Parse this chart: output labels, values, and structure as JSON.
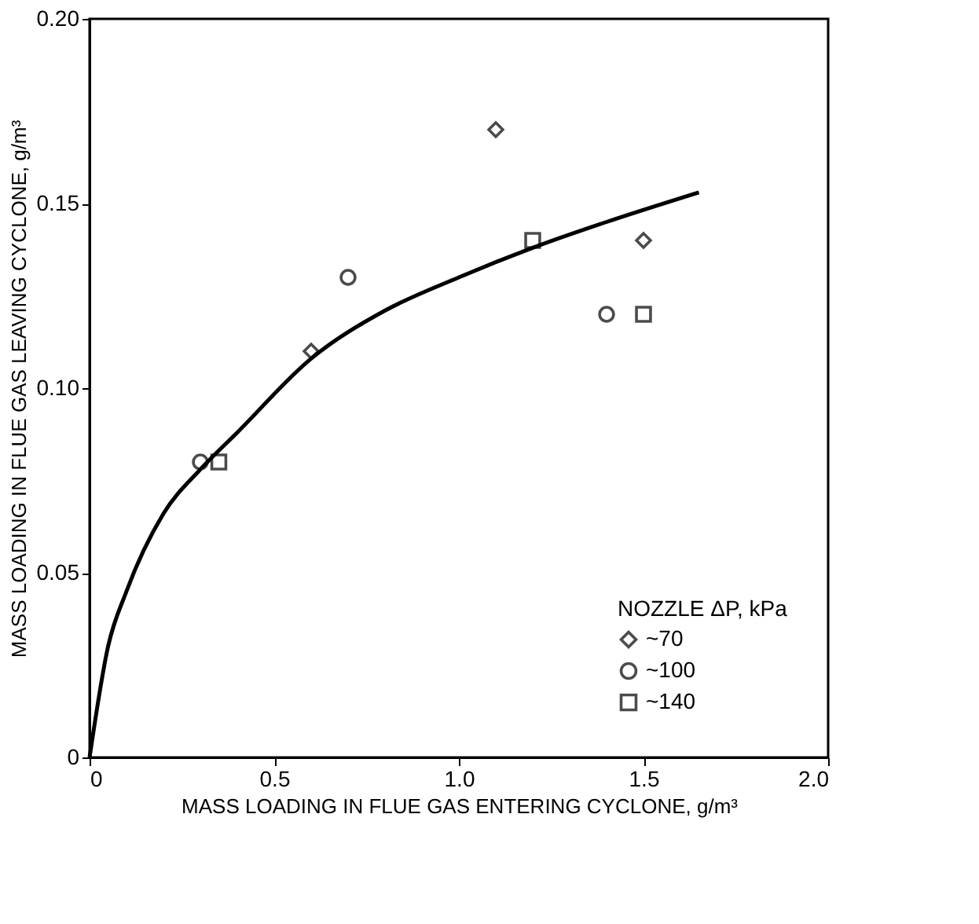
{
  "chart_data": {
    "type": "scatter",
    "xlabel": "MASS LOADING IN FLUE GAS ENTERING CYCLONE, g/m³",
    "ylabel": "MASS LOADING IN FLUE GAS LEAVING CYCLONE, g/m³",
    "legend_title": "NOZZLE ΔP, kPa",
    "xlim": [
      0,
      2.0
    ],
    "ylim": [
      0,
      0.2
    ],
    "xticks": [
      {
        "value": 0,
        "label": "0"
      },
      0.5,
      {
        "value": 1,
        "label": "1.0"
      },
      1.5,
      {
        "value": 2,
        "label": "2.0"
      }
    ],
    "yticks": [
      {
        "value": 0,
        "label": "0"
      },
      0.05,
      {
        "value": 0.1,
        "label": "0.10"
      },
      0.15,
      {
        "value": 0.2,
        "label": "0.20"
      }
    ],
    "grid": false,
    "legend": "bottom right",
    "series": [
      {
        "name": "~70",
        "color": "#000000",
        "marker": "diamond",
        "x": [
          0.6,
          1.1,
          1.5
        ],
        "values": [
          0.11,
          0.17,
          0.14
        ]
      },
      {
        "name": "~100",
        "color": "#000000",
        "marker": "circle",
        "x": [
          0.3,
          0.7,
          1.4
        ],
        "values": [
          0.08,
          0.13,
          0.12
        ]
      },
      {
        "name": "~140",
        "color": "#000000",
        "marker": "square",
        "x": [
          0.35,
          1.2,
          1.5
        ],
        "values": [
          0.08,
          0.14,
          0.12
        ]
      },
      {
        "type": "line",
        "color": "#000000",
        "marker": "none",
        "line_style": "solid",
        "x": [
          0,
          0.05,
          0.1,
          0.2,
          0.3,
          0.4,
          0.6,
          0.8,
          1.0,
          1.2,
          1.4,
          1.65
        ],
        "values": [
          0,
          0.03,
          0.045,
          0.066,
          0.078,
          0.088,
          0.108,
          0.121,
          0.13,
          0.138,
          0.145,
          0.153
        ]
      }
    ]
  }
}
